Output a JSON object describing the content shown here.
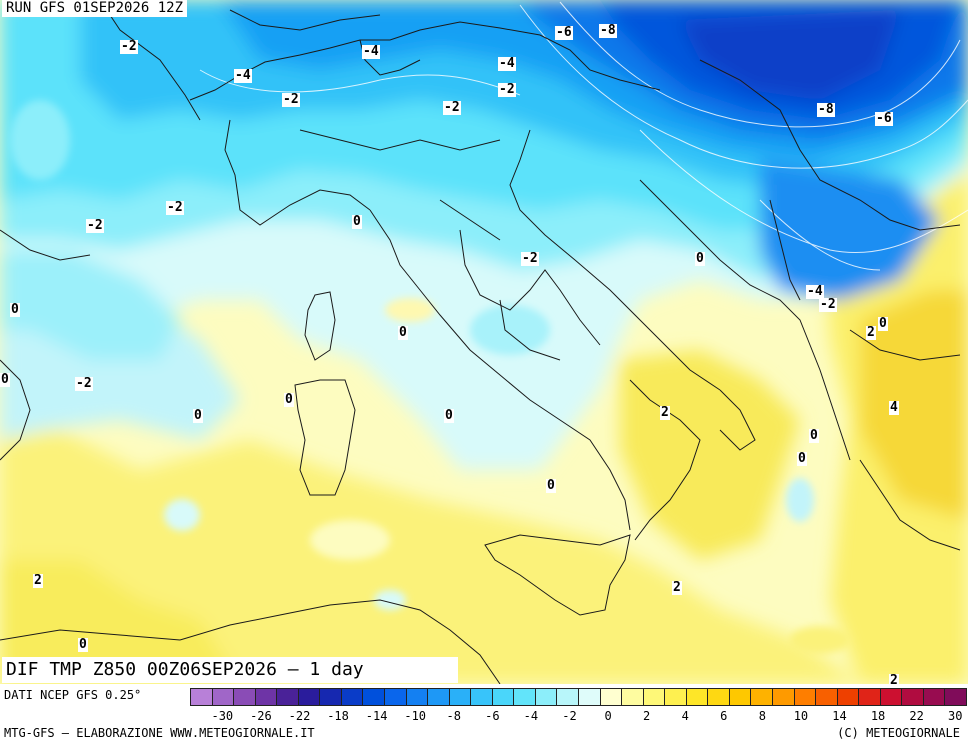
{
  "header": {
    "run_title": "RUN GFS 01SEP2026 12Z"
  },
  "field_title": "DIF TMP Z850 00Z06SEP2026 – 1 day",
  "source_note": "DATI NCEP GFS 0.25°",
  "footer": {
    "left": "MTG-GFS – ELABORAZIONE WWW.METEOGIORNALE.IT",
    "right": "(C) METEOGIORNALE"
  },
  "legend": {
    "colors": [
      "#b880d8",
      "#a066c8",
      "#8a4cb6",
      "#6e34a6",
      "#4a2298",
      "#2a1c9c",
      "#1628b0",
      "#0a3cc8",
      "#0050dc",
      "#0a66ec",
      "#1480f2",
      "#1e98f6",
      "#2ab0f8",
      "#38c4fa",
      "#4ad6fa",
      "#62e4fa",
      "#8ceefa",
      "#b8f6fa",
      "#dffcfa",
      "#ffffd0",
      "#fefca0",
      "#fef878",
      "#fef050",
      "#fee628",
      "#fed812",
      "#fec800",
      "#feb200",
      "#fe9a00",
      "#fe7e00",
      "#f86000",
      "#ee4000",
      "#e02418",
      "#cc1030",
      "#b00c40",
      "#980c50",
      "#800c5a"
    ],
    "tick_labels": [
      "-30",
      "-26",
      "-22",
      "-18",
      "-14",
      "-10",
      "-8",
      "-6",
      "-4",
      "-2",
      "0",
      "2",
      "4",
      "6",
      "8",
      "10",
      "14",
      "18",
      "22",
      "30"
    ]
  },
  "contour_labels": [
    {
      "text": "-2"
    },
    {
      "text": "-4"
    },
    {
      "text": "-2"
    },
    {
      "text": "-4"
    },
    {
      "text": "-6"
    },
    {
      "text": "-8"
    },
    {
      "text": "-4"
    },
    {
      "text": "-2"
    },
    {
      "text": "-2"
    },
    {
      "text": "-8"
    },
    {
      "text": "-6"
    },
    {
      "text": "-2"
    },
    {
      "text": "-2"
    },
    {
      "text": "0"
    },
    {
      "text": "-2"
    },
    {
      "text": "0"
    },
    {
      "text": "-4"
    },
    {
      "text": "-2"
    },
    {
      "text": "0"
    },
    {
      "text": "2"
    },
    {
      "text": "0"
    },
    {
      "text": "0"
    },
    {
      "text": "0"
    },
    {
      "text": "-2"
    },
    {
      "text": "0"
    },
    {
      "text": "0"
    },
    {
      "text": "0"
    },
    {
      "text": "2"
    },
    {
      "text": "4"
    },
    {
      "text": "0"
    },
    {
      "text": "0"
    },
    {
      "text": "0"
    },
    {
      "text": "2"
    },
    {
      "text": "2"
    },
    {
      "text": "0"
    },
    {
      "text": "2"
    }
  ]
}
